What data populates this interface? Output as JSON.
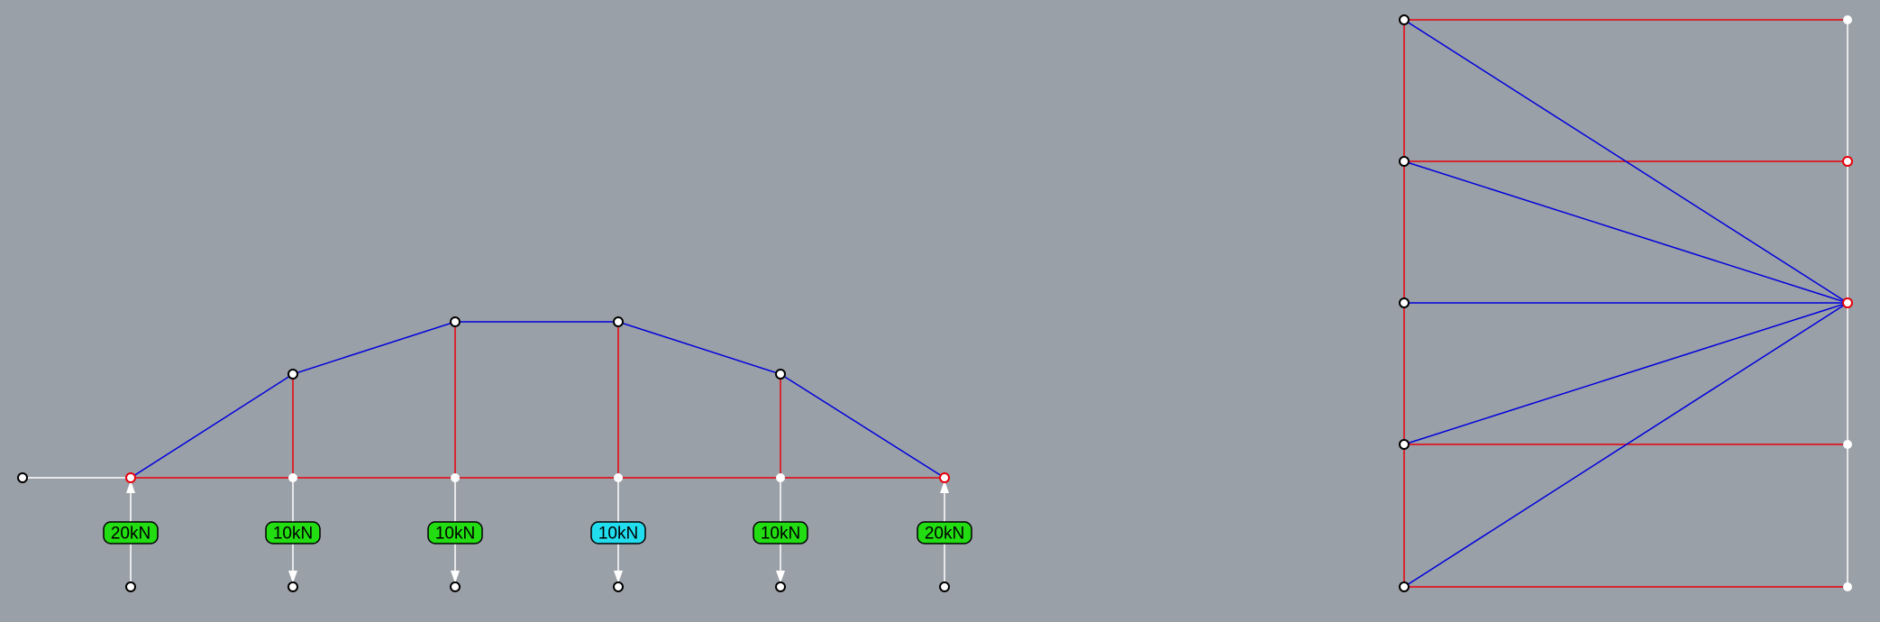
{
  "colors": {
    "background": "#9aa0a7",
    "tension": "#e8000b",
    "compression": "#0000dd",
    "neutral": "#ffffff",
    "load_label_fill": "#22dd11",
    "load_label_selected_fill": "#22ddee",
    "node_outline": "#000000"
  },
  "form_diagram": {
    "loads": [
      {
        "label": "20kN",
        "direction": "up",
        "selected": false
      },
      {
        "label": "10kN",
        "direction": "down",
        "selected": false
      },
      {
        "label": "10kN",
        "direction": "down",
        "selected": false
      },
      {
        "label": "10kN",
        "direction": "down",
        "selected": true
      },
      {
        "label": "10kN",
        "direction": "down",
        "selected": false
      },
      {
        "label": "20kN",
        "direction": "up",
        "selected": false
      }
    ]
  }
}
